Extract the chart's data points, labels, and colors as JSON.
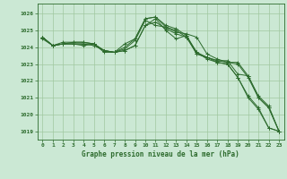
{
  "bg_color": "#cbe8d4",
  "grid_color": "#a0c8a0",
  "line_color": "#2d6b2d",
  "xlabel": "Graphe pression niveau de la mer (hPa)",
  "ylim": [
    1018.5,
    1026.6
  ],
  "xlim": [
    -0.5,
    23.5
  ],
  "yticks": [
    1019,
    1020,
    1021,
    1022,
    1023,
    1024,
    1025,
    1026
  ],
  "xticks": [
    0,
    1,
    2,
    3,
    4,
    5,
    6,
    7,
    8,
    9,
    10,
    11,
    12,
    13,
    14,
    15,
    16,
    17,
    18,
    19,
    20,
    21,
    22,
    23
  ],
  "series": [
    {
      "x": [
        0,
        1,
        2,
        3,
        4,
        5,
        6,
        7,
        8,
        9,
        10,
        11,
        12,
        13,
        14,
        15,
        16,
        17,
        18,
        19,
        20,
        21,
        22,
        23
      ],
      "y": [
        1024.6,
        1024.1,
        1024.2,
        1024.2,
        1024.1,
        1024.2,
        1023.8,
        1023.7,
        1024.0,
        1024.5,
        1025.7,
        1025.8,
        1025.3,
        1025.1,
        1024.7,
        1023.7,
        1023.4,
        1023.2,
        1023.1,
        1023.1,
        1022.3,
        1021.1,
        1020.5,
        1019.0
      ]
    },
    {
      "x": [
        0,
        1,
        2,
        3,
        4,
        5,
        6,
        7,
        8,
        9,
        10,
        11,
        12,
        13,
        14,
        15,
        16,
        17,
        18,
        19,
        20,
        21,
        22,
        23
      ],
      "y": [
        1024.6,
        1024.1,
        1024.2,
        1024.2,
        1024.2,
        1024.2,
        1023.7,
        1023.7,
        1023.8,
        1024.1,
        1025.3,
        1025.7,
        1025.0,
        1024.5,
        1024.7,
        1023.6,
        1023.4,
        1023.2,
        1023.2,
        1022.4,
        1022.3,
        1021.0,
        1020.4,
        1019.0
      ]
    },
    {
      "x": [
        0,
        1,
        2,
        3,
        4,
        5,
        6,
        7,
        8,
        9,
        10,
        11,
        12,
        13,
        14,
        15,
        16,
        17,
        18,
        19,
        20,
        21,
        22,
        23
      ],
      "y": [
        1024.6,
        1024.1,
        1024.3,
        1024.3,
        1024.3,
        1024.2,
        1023.8,
        1023.7,
        1023.9,
        1024.4,
        1025.6,
        1025.3,
        1025.2,
        1024.9,
        1024.8,
        1024.6,
        1023.6,
        1023.3,
        1023.1,
        1023.0,
        1022.2,
        1021.0,
        1020.4,
        1019.0
      ]
    },
    {
      "x": [
        0,
        1,
        2,
        3,
        4,
        5,
        6,
        7,
        8,
        9,
        10,
        11,
        12,
        13,
        14,
        15,
        16,
        17,
        18,
        19,
        20,
        21,
        22,
        23
      ],
      "y": [
        1024.6,
        1024.1,
        1024.2,
        1024.3,
        1024.3,
        1024.2,
        1023.8,
        1023.7,
        1024.2,
        1024.5,
        1025.7,
        1025.8,
        1025.2,
        1025.0,
        1024.6,
        1023.7,
        1023.3,
        1023.1,
        1023.0,
        1022.2,
        1021.0,
        1020.3,
        1019.2,
        1019.0
      ]
    },
    {
      "x": [
        0,
        1,
        2,
        3,
        4,
        5,
        6,
        7,
        8,
        9,
        10,
        11,
        12,
        13,
        14,
        15,
        16,
        17,
        18,
        19,
        20,
        21,
        22,
        23
      ],
      "y": [
        1024.5,
        1024.1,
        1024.2,
        1024.2,
        1024.2,
        1024.1,
        1023.8,
        1023.7,
        1023.8,
        1024.1,
        1025.3,
        1025.5,
        1025.1,
        1024.8,
        1024.6,
        1023.6,
        1023.4,
        1023.1,
        1023.0,
        1022.2,
        1021.1,
        1020.4,
        1019.2,
        1019.0
      ]
    }
  ]
}
